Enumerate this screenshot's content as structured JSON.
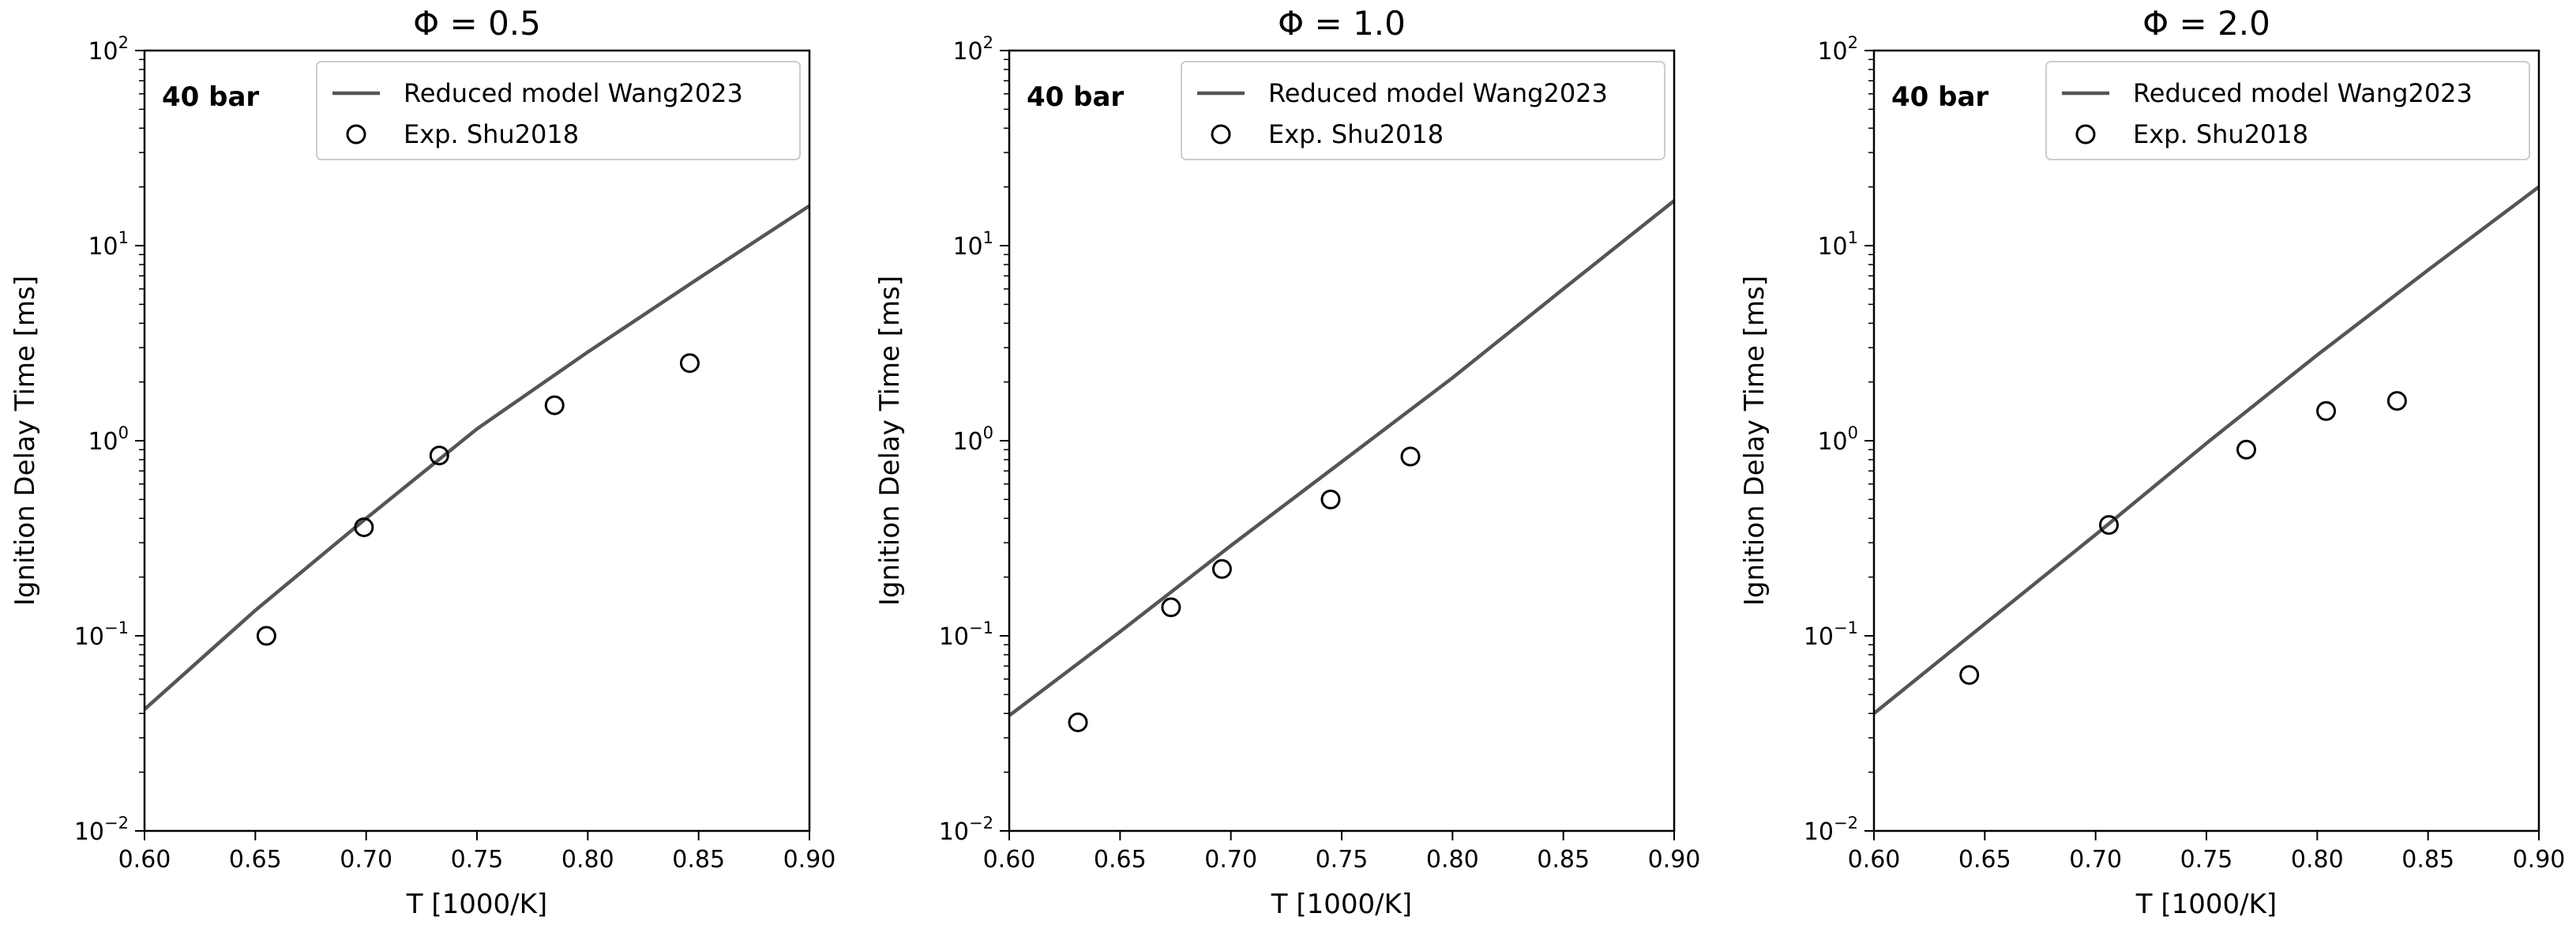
{
  "chart_data": [
    {
      "type": "line",
      "title": "Φ = 0.5",
      "annotation": "40 bar",
      "xlabel": "T [1000/K]",
      "ylabel": "Ignition Delay Time [ms]",
      "xlim": [
        0.6,
        0.9
      ],
      "ylim": [
        0.01,
        100
      ],
      "yscale": "log",
      "grid": false,
      "legend_position": "top-right",
      "xticks": [
        0.6,
        0.65,
        0.7,
        0.75,
        0.8,
        0.85,
        0.9
      ],
      "xtick_labels": [
        "0.60",
        "0.65",
        "0.70",
        "0.75",
        "0.80",
        "0.85",
        "0.90"
      ],
      "yticks": [
        0.01,
        0.1,
        1,
        10,
        100
      ],
      "ytick_labels": [
        {
          "base": "10",
          "exp": "−2"
        },
        {
          "base": "10",
          "exp": "−1"
        },
        {
          "base": "10",
          "exp": "0"
        },
        {
          "base": "10",
          "exp": "1"
        },
        {
          "base": "10",
          "exp": "2"
        }
      ],
      "series": [
        {
          "name": "Reduced model Wang2023",
          "kind": "line",
          "color": "#555555",
          "x": [
            0.6,
            0.65,
            0.7,
            0.75,
            0.8,
            0.85,
            0.9
          ],
          "y": [
            0.042,
            0.135,
            0.4,
            1.15,
            2.85,
            6.8,
            16.0
          ]
        },
        {
          "name": "Exp. Shu2018",
          "kind": "marker",
          "marker": "open-circle",
          "color": "#000000",
          "x": [
            0.655,
            0.699,
            0.733,
            0.785,
            0.846
          ],
          "y": [
            0.1,
            0.36,
            0.84,
            1.52,
            2.5
          ]
        }
      ]
    },
    {
      "type": "line",
      "title": "Φ = 1.0",
      "annotation": "40 bar",
      "xlabel": "T [1000/K]",
      "ylabel": "Ignition Delay Time [ms]",
      "xlim": [
        0.6,
        0.9
      ],
      "ylim": [
        0.01,
        100
      ],
      "yscale": "log",
      "grid": false,
      "legend_position": "top-right",
      "xticks": [
        0.6,
        0.65,
        0.7,
        0.75,
        0.8,
        0.85,
        0.9
      ],
      "xtick_labels": [
        "0.60",
        "0.65",
        "0.70",
        "0.75",
        "0.80",
        "0.85",
        "0.90"
      ],
      "yticks": [
        0.01,
        0.1,
        1,
        10,
        100
      ],
      "ytick_labels": [
        {
          "base": "10",
          "exp": "−2"
        },
        {
          "base": "10",
          "exp": "−1"
        },
        {
          "base": "10",
          "exp": "0"
        },
        {
          "base": "10",
          "exp": "1"
        },
        {
          "base": "10",
          "exp": "2"
        }
      ],
      "series": [
        {
          "name": "Reduced model Wang2023",
          "kind": "line",
          "color": "#555555",
          "x": [
            0.6,
            0.65,
            0.7,
            0.75,
            0.8,
            0.85,
            0.9
          ],
          "y": [
            0.039,
            0.105,
            0.29,
            0.78,
            2.1,
            6.0,
            17.0
          ]
        },
        {
          "name": "Exp. Shu2018",
          "kind": "marker",
          "marker": "open-circle",
          "color": "#000000",
          "x": [
            0.631,
            0.673,
            0.696,
            0.745,
            0.781
          ],
          "y": [
            0.036,
            0.14,
            0.22,
            0.5,
            0.83
          ]
        }
      ]
    },
    {
      "type": "line",
      "title": "Φ = 2.0",
      "annotation": "40 bar",
      "xlabel": "T [1000/K]",
      "ylabel": "Ignition Delay Time [ms]",
      "xlim": [
        0.6,
        0.9
      ],
      "ylim": [
        0.01,
        100
      ],
      "yscale": "log",
      "grid": false,
      "legend_position": "top-right",
      "xticks": [
        0.6,
        0.65,
        0.7,
        0.75,
        0.8,
        0.85,
        0.9
      ],
      "xtick_labels": [
        "0.60",
        "0.65",
        "0.70",
        "0.75",
        "0.80",
        "0.85",
        "0.90"
      ],
      "yticks": [
        0.01,
        0.1,
        1,
        10,
        100
      ],
      "ytick_labels": [
        {
          "base": "10",
          "exp": "−2"
        },
        {
          "base": "10",
          "exp": "−1"
        },
        {
          "base": "10",
          "exp": "0"
        },
        {
          "base": "10",
          "exp": "1"
        },
        {
          "base": "10",
          "exp": "2"
        }
      ],
      "series": [
        {
          "name": "Reduced model Wang2023",
          "kind": "line",
          "color": "#555555",
          "x": [
            0.6,
            0.65,
            0.7,
            0.75,
            0.8,
            0.85,
            0.9
          ],
          "y": [
            0.04,
            0.115,
            0.33,
            0.97,
            2.75,
            7.5,
            20.0
          ]
        },
        {
          "name": "Exp. Shu2018",
          "kind": "marker",
          "marker": "open-circle",
          "color": "#000000",
          "x": [
            0.643,
            0.706,
            0.768,
            0.804,
            0.836
          ],
          "y": [
            0.063,
            0.37,
            0.9,
            1.42,
            1.6
          ]
        }
      ]
    }
  ]
}
